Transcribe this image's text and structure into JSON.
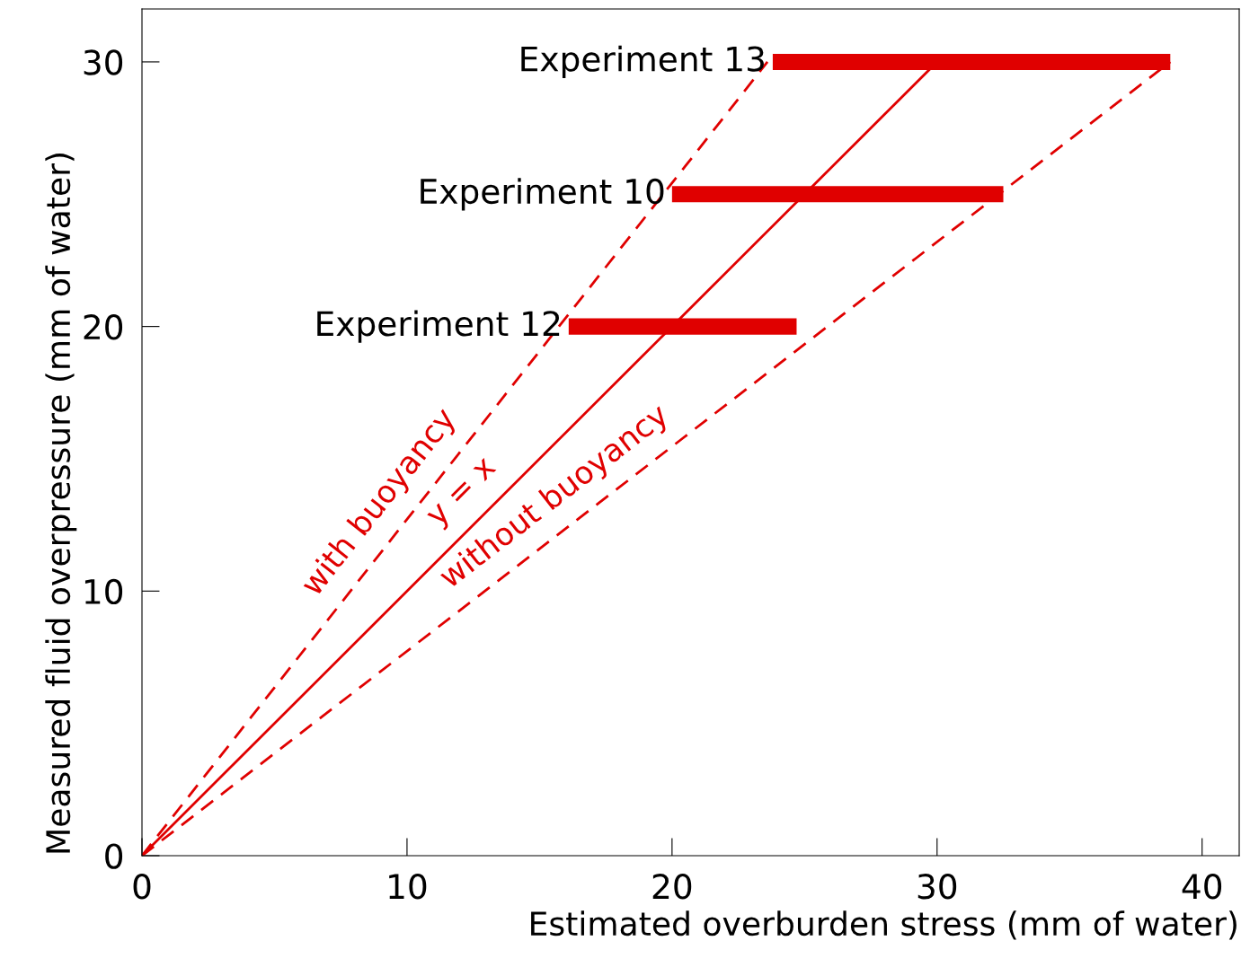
{
  "chart_data": {
    "type": "line",
    "xlabel": "Estimated overburden stress (mm of water)",
    "ylabel": "Measured fluid overpressure (mm of water)",
    "xlim": [
      0,
      41.4
    ],
    "ylim": [
      0,
      32
    ],
    "xticks": [
      0,
      10,
      20,
      30,
      40
    ],
    "yticks": [
      0,
      10,
      20,
      30
    ],
    "grid": false,
    "legend": false,
    "series": [
      {
        "type": "step",
        "name": "Experiment 13",
        "color": "#e00000",
        "x": [
          23.8,
          38.8
        ],
        "values": [
          30,
          30
        ]
      },
      {
        "type": "step",
        "name": "Experiment 10",
        "color": "#e00000",
        "x": [
          20.0,
          32.5
        ],
        "values": [
          25,
          25
        ]
      },
      {
        "type": "step",
        "name": "Experiment 12",
        "color": "#e00000",
        "x": [
          16.1,
          24.7
        ],
        "values": [
          20,
          20
        ]
      },
      {
        "color": "#e00000",
        "line_style": "dashed",
        "x": [
          0,
          23.6
        ],
        "values": [
          0,
          30
        ]
      },
      {
        "color": "#e00000",
        "line_style": "solid",
        "x": [
          0,
          30
        ],
        "values": [
          0,
          30
        ]
      },
      {
        "color": "#e00000",
        "line_style": "dashed",
        "x": [
          0,
          38.8
        ],
        "values": [
          0,
          30
        ]
      }
    ],
    "annotations": [
      {
        "text": "with buoyancy",
        "x": 9.9,
        "y": 12.6
      },
      {
        "text": "y = x",
        "x": 12.9,
        "y": 12.9
      },
      {
        "text": "without buoyancy",
        "x": 16.3,
        "y": 12.6
      }
    ]
  }
}
